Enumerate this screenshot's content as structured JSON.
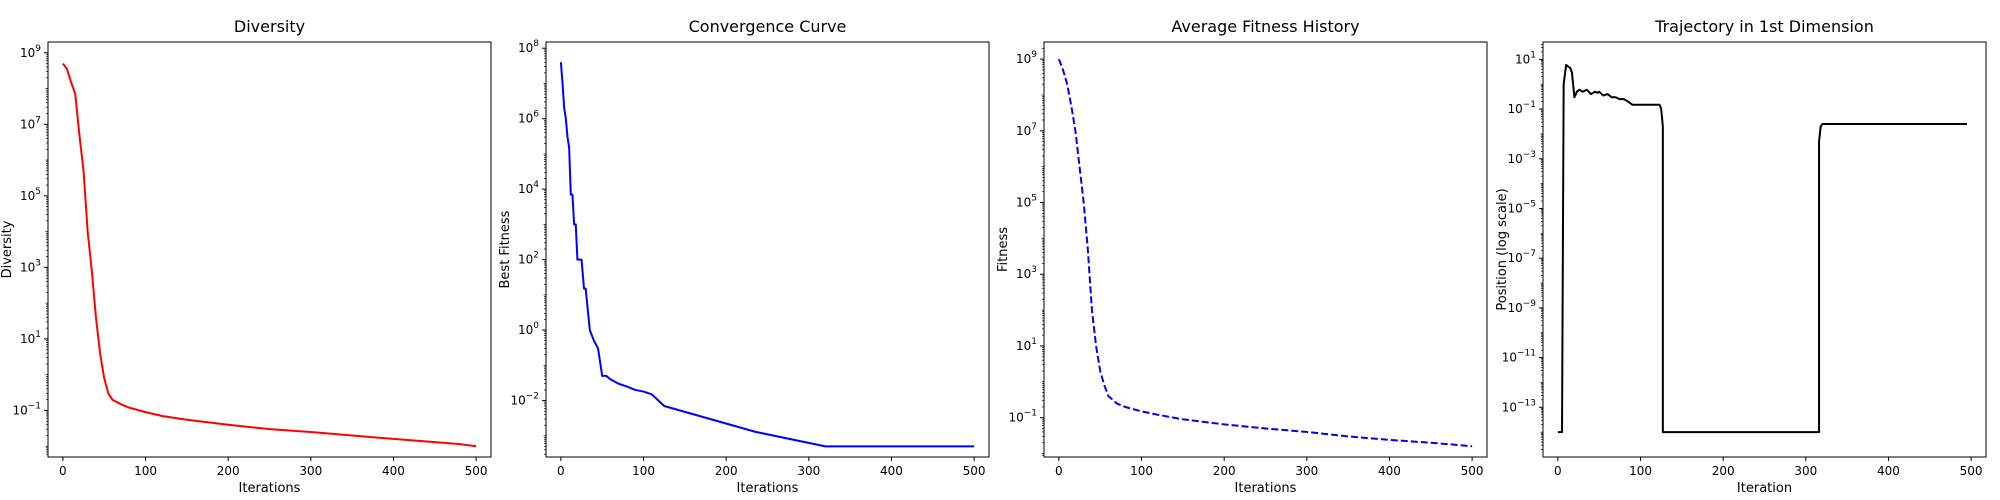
{
  "chart_data": [
    {
      "type": "line",
      "title": "Diversity",
      "xlabel": "Iterations",
      "ylabel": "Diversity",
      "yscale": "log",
      "xlim": [
        -18,
        518
      ],
      "ylim": [
        0.005,
        2000000000
      ],
      "xticks": [
        0,
        100,
        200,
        300,
        400,
        500
      ],
      "yticks": [
        0.1,
        10,
        1000,
        100000,
        10000000,
        1000000000
      ],
      "ytick_labels": [
        {
          "base": "10",
          "exp": "−1"
        },
        {
          "base": "10",
          "exp": "1"
        },
        {
          "base": "10",
          "exp": "3"
        },
        {
          "base": "10",
          "exp": "5"
        },
        {
          "base": "10",
          "exp": "7"
        },
        {
          "base": "10",
          "exp": "9"
        }
      ],
      "grid": false,
      "series": [
        {
          "color": "#ff0000",
          "dash": "solid",
          "x": [
            0,
            5,
            10,
            15,
            20,
            25,
            30,
            35,
            40,
            45,
            50,
            55,
            60,
            70,
            80,
            100,
            120,
            150,
            200,
            250,
            300,
            350,
            400,
            450,
            480,
            500
          ],
          "y": [
            500000000,
            350000000,
            150000000,
            70000000,
            5000000,
            500000,
            10000,
            800,
            40,
            4,
            0.8,
            0.3,
            0.2,
            0.15,
            0.12,
            0.09,
            0.07,
            0.055,
            0.04,
            0.03,
            0.025,
            0.02,
            0.016,
            0.013,
            0.0115,
            0.01
          ]
        }
      ]
    },
    {
      "type": "line",
      "title": "Convergence Curve",
      "xlabel": "Iterations",
      "ylabel": "Best Fitness",
      "yscale": "log",
      "xlim": [
        -18,
        518
      ],
      "ylim": [
        0.00025,
        150000000
      ],
      "xticks": [
        0,
        100,
        200,
        300,
        400,
        500
      ],
      "yticks": [
        0.01,
        1,
        100,
        10000,
        1000000,
        100000000
      ],
      "ytick_labels": [
        {
          "base": "10",
          "exp": "−2"
        },
        {
          "base": "10",
          "exp": "0"
        },
        {
          "base": "10",
          "exp": "2"
        },
        {
          "base": "10",
          "exp": "4"
        },
        {
          "base": "10",
          "exp": "6"
        },
        {
          "base": "10",
          "exp": "8"
        }
      ],
      "grid": false,
      "series": [
        {
          "color": "#0000ff",
          "dash": "solid",
          "x": [
            0,
            2,
            4,
            6,
            8,
            10,
            12,
            14,
            16,
            18,
            20,
            22,
            25,
            28,
            30,
            35,
            40,
            45,
            50,
            55,
            60,
            70,
            80,
            90,
            100,
            110,
            125,
            235,
            320,
            500
          ],
          "y": [
            40000000,
            10000000,
            2000000,
            1000000,
            300000,
            150000,
            7000,
            7000,
            1000,
            1000,
            100,
            100,
            100,
            15,
            15,
            1,
            0.5,
            0.3,
            0.05,
            0.05,
            0.04,
            0.03,
            0.025,
            0.02,
            0.018,
            0.015,
            0.007,
            0.0013,
            0.0005,
            0.0005
          ]
        }
      ]
    },
    {
      "type": "line",
      "title": "Average Fitness History",
      "xlabel": "Iterations",
      "ylabel": "Fitness",
      "yscale": "log",
      "xlim": [
        -18,
        518
      ],
      "ylim": [
        0.008,
        3000000000
      ],
      "xticks": [
        0,
        100,
        200,
        300,
        400,
        500
      ],
      "yticks": [
        0.1,
        10,
        1000,
        100000,
        10000000,
        1000000000
      ],
      "ytick_labels": [
        {
          "base": "10",
          "exp": "−1"
        },
        {
          "base": "10",
          "exp": "1"
        },
        {
          "base": "10",
          "exp": "3"
        },
        {
          "base": "10",
          "exp": "5"
        },
        {
          "base": "10",
          "exp": "7"
        },
        {
          "base": "10",
          "exp": "9"
        }
      ],
      "grid": false,
      "series": [
        {
          "color": "#0000ff",
          "dash": "dashed",
          "x": [
            0,
            5,
            10,
            15,
            20,
            25,
            30,
            35,
            40,
            45,
            50,
            55,
            60,
            70,
            80,
            100,
            120,
            150,
            200,
            250,
            300,
            350,
            400,
            450,
            500
          ],
          "y": [
            1000000000,
            500000000,
            200000000,
            50000000,
            10000000,
            1000000,
            100000,
            5000,
            100,
            10,
            2,
            0.8,
            0.4,
            0.25,
            0.2,
            0.15,
            0.12,
            0.09,
            0.065,
            0.05,
            0.04,
            0.03,
            0.024,
            0.02,
            0.016
          ]
        }
      ]
    },
    {
      "type": "line",
      "title": "Trajectory in 1st Dimension",
      "xlabel": "Iteration",
      "ylabel": "Position (log scale)",
      "yscale": "log",
      "xlim": [
        -18,
        518
      ],
      "ylim": [
        1e-15,
        50
      ],
      "xticks": [
        0,
        100,
        200,
        300,
        400,
        500
      ],
      "yticks": [
        1e-13,
        1e-11,
        1e-09,
        1e-07,
        1e-05,
        0.001,
        0.1,
        10
      ],
      "ytick_labels": [
        {
          "base": "10",
          "exp": "−13"
        },
        {
          "base": "10",
          "exp": "−11"
        },
        {
          "base": "10",
          "exp": "−9"
        },
        {
          "base": "10",
          "exp": "−7"
        },
        {
          "base": "10",
          "exp": "−5"
        },
        {
          "base": "10",
          "exp": "−3"
        },
        {
          "base": "10",
          "exp": "−1"
        },
        {
          "base": "10",
          "exp": "1"
        }
      ],
      "grid": false,
      "series": [
        {
          "color": "#000000",
          "dash": "solid",
          "x": [
            0,
            5,
            7,
            10,
            13,
            15,
            17,
            20,
            23,
            26,
            30,
            35,
            40,
            45,
            48,
            50,
            55,
            60,
            65,
            70,
            75,
            80,
            85,
            90,
            95,
            100,
            110,
            120,
            123,
            125,
            127,
            127,
            200,
            300,
            316,
            316,
            318,
            320,
            322,
            350,
            400,
            450,
            495
          ],
          "y": [
            1e-14,
            1e-14,
            1,
            6,
            5,
            4.5,
            3,
            0.3,
            0.5,
            0.6,
            0.5,
            0.6,
            0.4,
            0.5,
            0.45,
            0.5,
            0.35,
            0.4,
            0.3,
            0.3,
            0.25,
            0.25,
            0.2,
            0.15,
            0.15,
            0.15,
            0.15,
            0.15,
            0.15,
            0.1,
            0.02,
            1e-14,
            1e-14,
            1e-14,
            1e-14,
            0.005,
            0.02,
            0.025,
            0.025,
            0.025,
            0.025,
            0.025,
            0.025
          ]
        }
      ]
    }
  ]
}
